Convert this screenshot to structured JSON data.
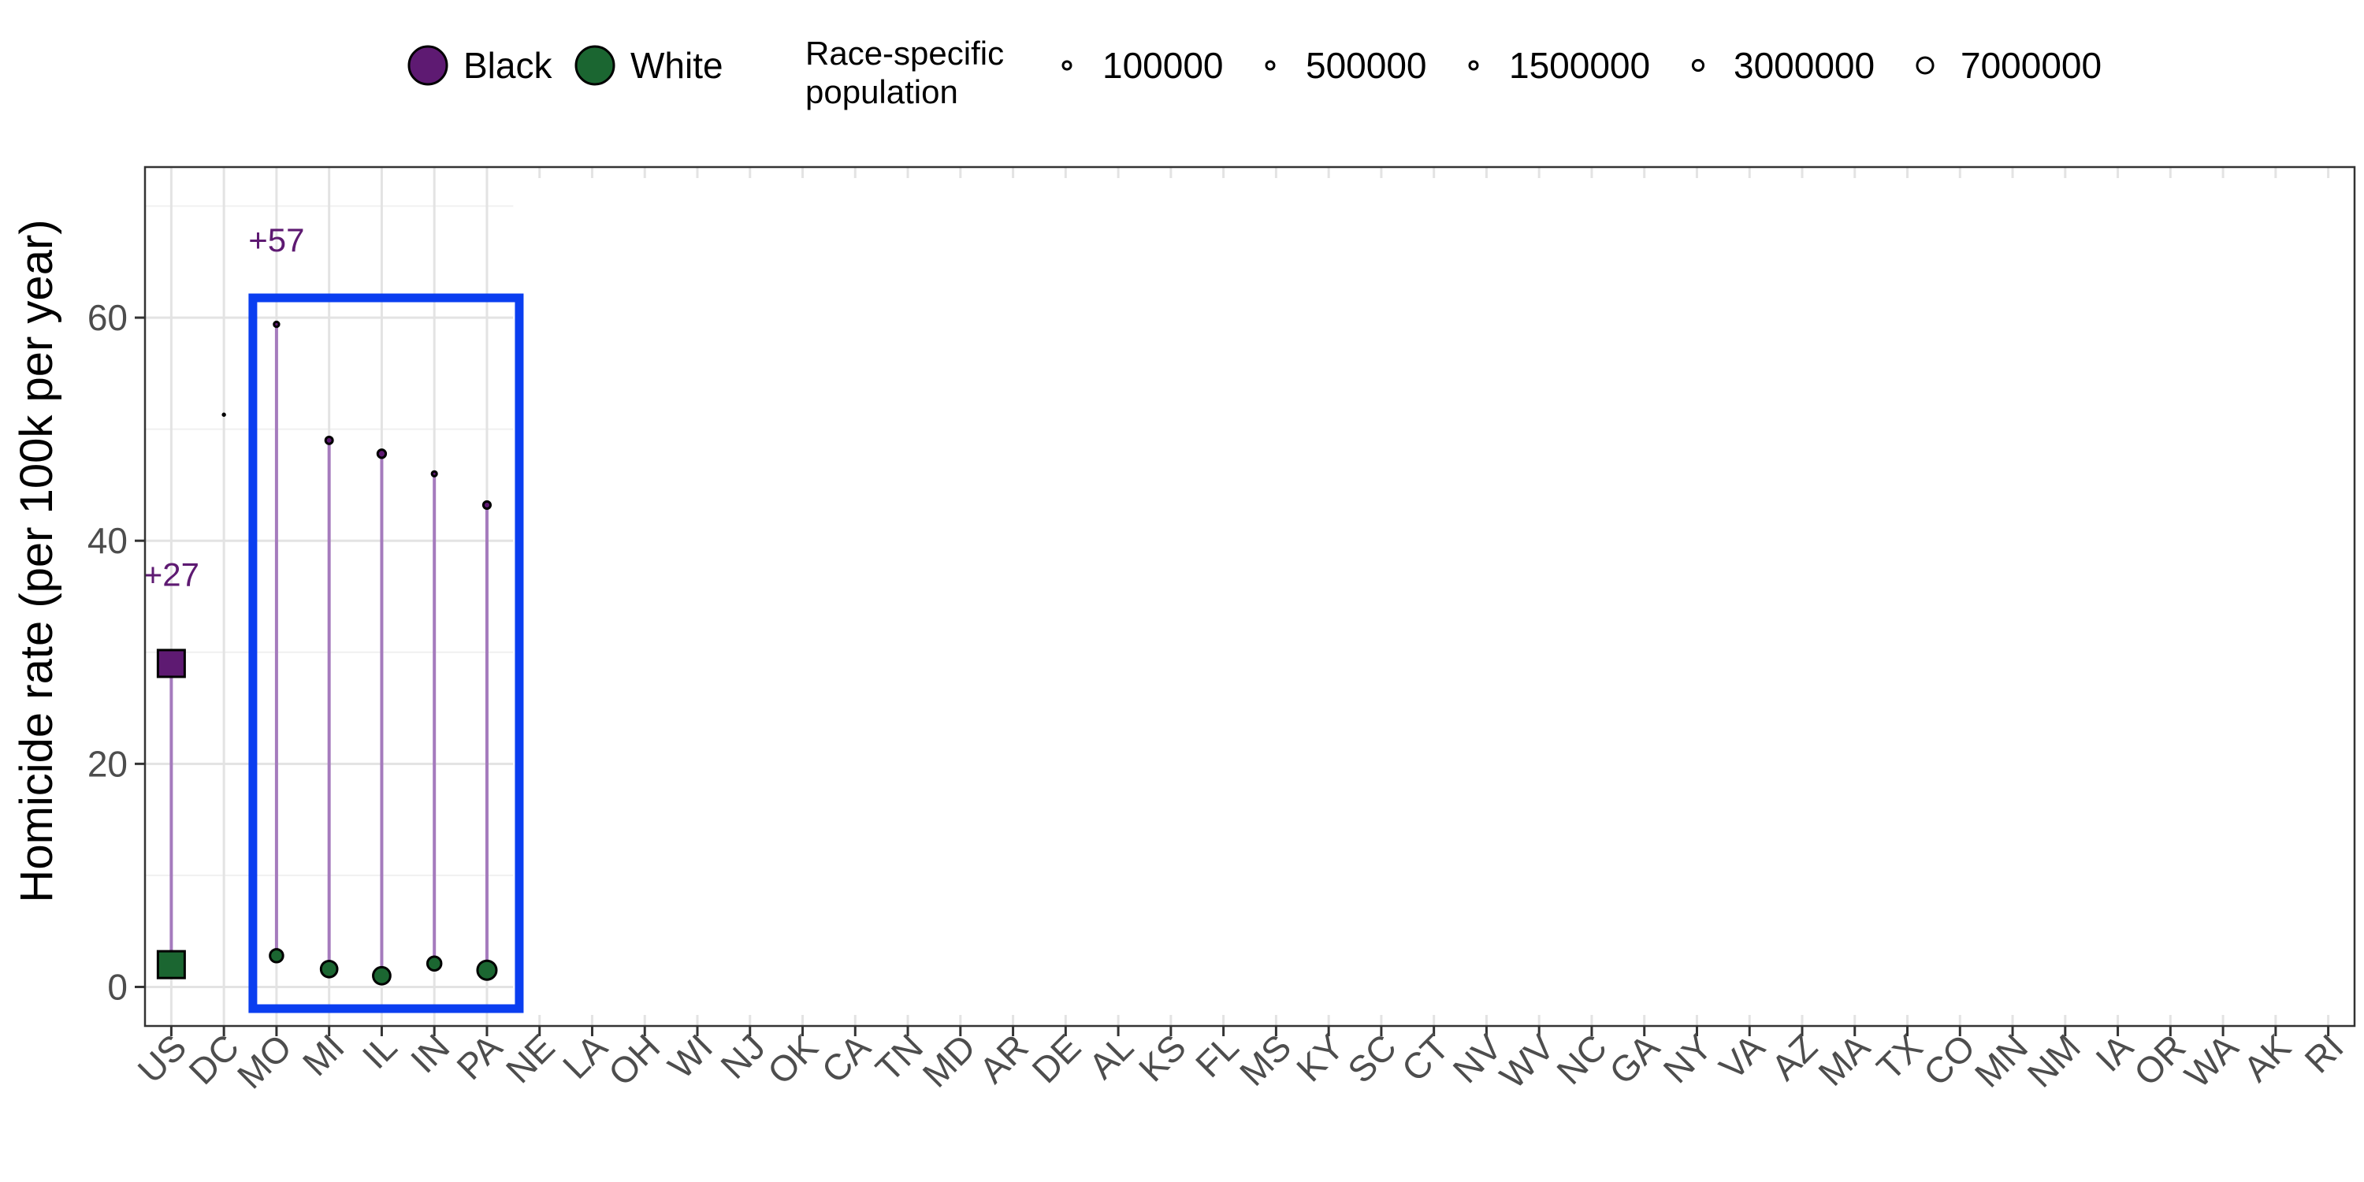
{
  "chart_data": {
    "type": "scatter",
    "title": "",
    "xlabel": "",
    "ylabel": "Homicide rate (per 100k per year)",
    "ylim": [
      -3.5,
      73.5
    ],
    "yticks": [
      0,
      20,
      40,
      60
    ],
    "grid": true,
    "legend_position": "top",
    "categories": [
      "US",
      "DC",
      "MO",
      "MI",
      "IL",
      "IN",
      "PA",
      "NE",
      "LA",
      "OH",
      "WI",
      "NJ",
      "OK",
      "CA",
      "TN",
      "MD",
      "AR",
      "DE",
      "AL",
      "KS",
      "FL",
      "MS",
      "KY",
      "SC",
      "CT",
      "NV",
      "WV",
      "NC",
      "GA",
      "NY",
      "VA",
      "AZ",
      "MA",
      "TX",
      "CO",
      "MN",
      "NM",
      "IA",
      "OR",
      "WA",
      "AK",
      "RI"
    ],
    "series": [
      {
        "name": "Black",
        "color": "#5e1a72",
        "points": [
          {
            "x": "US",
            "y": 29.0,
            "population": 40000000,
            "shape": "square"
          },
          {
            "x": "DC",
            "y": 51.3,
            "population": 100000
          },
          {
            "x": "MO",
            "y": 59.4,
            "population": 700000
          },
          {
            "x": "MI",
            "y": 49.0,
            "population": 1400000
          },
          {
            "x": "IL",
            "y": 47.8,
            "population": 1850000
          },
          {
            "x": "IN",
            "y": 46.0,
            "population": 650000
          },
          {
            "x": "PA",
            "y": 43.2,
            "population": 1450000
          }
        ]
      },
      {
        "name": "White",
        "color": "#1b6631",
        "points": [
          {
            "x": "US",
            "y": 2.0,
            "population": 200000000,
            "shape": "square"
          },
          {
            "x": "MO",
            "y": 2.8,
            "population": 4700000
          },
          {
            "x": "MI",
            "y": 1.6,
            "population": 7400000
          },
          {
            "x": "IL",
            "y": 1.0,
            "population": 8200000
          },
          {
            "x": "IN",
            "y": 2.1,
            "population": 5300000
          },
          {
            "x": "PA",
            "y": 1.5,
            "population": 10000000
          }
        ]
      }
    ],
    "annotations": [
      {
        "text": "+27",
        "x": "US",
        "y": 37
      },
      {
        "text": "+57",
        "x": "MO",
        "y": 67
      }
    ],
    "highlight": {
      "from": "MO",
      "to": "PA",
      "color": "#0a3ef0"
    },
    "legend": {
      "race_title": "",
      "race_items": [
        {
          "label": "Black",
          "color": "#5e1a72"
        },
        {
          "label": "White",
          "color": "#1b6631"
        }
      ],
      "size_title_line1": "Race-specific",
      "size_title_line2": "population",
      "size_items": [
        {
          "label": "100000",
          "value": 100000
        },
        {
          "label": "500000",
          "value": 500000
        },
        {
          "label": "1500000",
          "value": 1500000
        },
        {
          "label": "3000000",
          "value": 3000000
        },
        {
          "label": "7000000",
          "value": 7000000
        }
      ]
    }
  }
}
